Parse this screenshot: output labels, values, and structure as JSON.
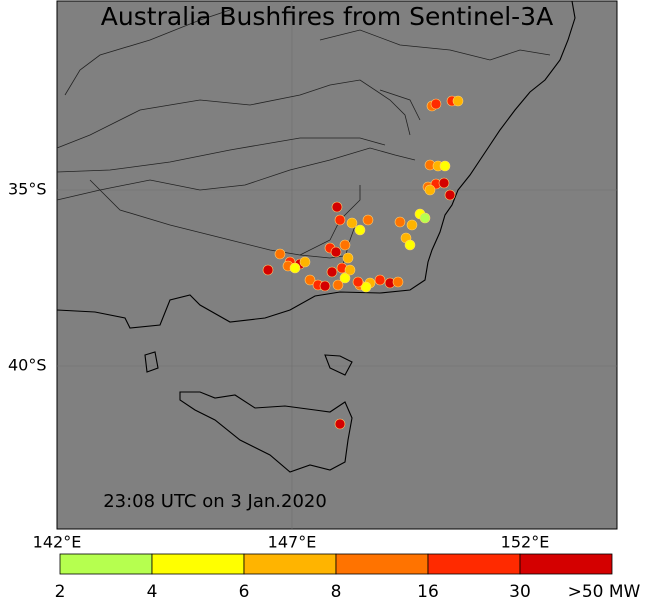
{
  "map": {
    "title": "Australia Bushfires from Sentinel-3A",
    "timestamp": "23:08 UTC on 3 Jan.2020",
    "lat_labels": [
      "35°S",
      "40°S"
    ],
    "lon_labels": [
      "142°E",
      "147°E",
      "152°E"
    ],
    "colorbar": {
      "labels": [
        "2",
        "4",
        "6",
        "8",
        "16",
        "30",
        ">50 MW"
      ],
      "colors": [
        "#b6ff4f",
        "#ffff00",
        "#ffb400",
        "#ff7300",
        "#ff2a00",
        "#d40000"
      ]
    }
  }
}
